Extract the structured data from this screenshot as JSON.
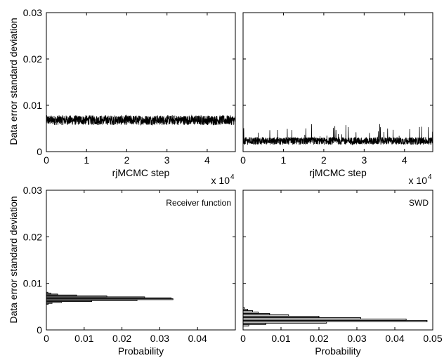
{
  "shared": {
    "ylabel": "Data error standard deviation",
    "trace_xlabel": "rjMCMC step",
    "trace_exponent_text": "x 10",
    "trace_exponent_power": "4",
    "hist_xlabel": "Probability"
  },
  "chart_data": [
    {
      "id": "trace-rf",
      "type": "line",
      "xlabel": "rjMCMC step",
      "ylabel": "Data error standard deviation",
      "xlim": [
        0,
        47000
      ],
      "ylim": [
        0,
        0.03
      ],
      "xticks": [
        0,
        10000,
        20000,
        30000,
        40000
      ],
      "xtick_labels": [
        "0",
        "1",
        "2",
        "3",
        "4"
      ],
      "yticks": [
        0,
        0.01,
        0.02,
        0.03
      ],
      "ytick_labels": [
        "0",
        "0.01",
        "0.02",
        "0.03"
      ],
      "x_multiplier": "x 10^4",
      "series": [
        {
          "values_summary": {
            "mean": 0.0068,
            "min": 0.0058,
            "max": 0.0079
          }
        }
      ],
      "color": "#000000"
    },
    {
      "id": "trace-swd",
      "type": "line",
      "xlabel": "rjMCMC step",
      "ylabel": "",
      "xlim": [
        0,
        47000
      ],
      "ylim": [
        0,
        0.03
      ],
      "xticks": [
        0,
        10000,
        20000,
        30000,
        40000
      ],
      "xtick_labels": [
        "0",
        "1",
        "2",
        "3",
        "4"
      ],
      "yticks": [
        0,
        0.01,
        0.02,
        0.03
      ],
      "ytick_labels": [
        "",
        "",
        "",
        ""
      ],
      "x_multiplier": "x 10^4",
      "series": [
        {
          "values_summary": {
            "mean": 0.0023,
            "min": 0.001,
            "max": 0.006
          }
        }
      ],
      "color": "#000000"
    },
    {
      "id": "hist-rf",
      "type": "bar",
      "title": "Receiver function",
      "xlabel": "Probability",
      "ylabel": "Data error standard deviation",
      "xlim": [
        0,
        0.05
      ],
      "ylim": [
        0,
        0.03
      ],
      "xticks": [
        0,
        0.01,
        0.02,
        0.03,
        0.04
      ],
      "xtick_labels": [
        "0",
        "0.01",
        "0.02",
        "0.03",
        "0.04"
      ],
      "yticks": [
        0,
        0.01,
        0.02,
        0.03
      ],
      "ytick_labels": [
        "0",
        "0.01",
        "0.02",
        "0.03"
      ],
      "bins": [
        {
          "y": 0.0056,
          "p": 0.0005
        },
        {
          "y": 0.0058,
          "p": 0.0015
        },
        {
          "y": 0.006,
          "p": 0.004
        },
        {
          "y": 0.0062,
          "p": 0.012
        },
        {
          "y": 0.0064,
          "p": 0.024
        },
        {
          "y": 0.0066,
          "p": 0.0335
        },
        {
          "y": 0.0068,
          "p": 0.033
        },
        {
          "y": 0.007,
          "p": 0.026
        },
        {
          "y": 0.0072,
          "p": 0.016
        },
        {
          "y": 0.0074,
          "p": 0.008
        },
        {
          "y": 0.0076,
          "p": 0.003
        },
        {
          "y": 0.0078,
          "p": 0.0012
        },
        {
          "y": 0.008,
          "p": 0.0004
        }
      ],
      "fill": "#cccccc"
    },
    {
      "id": "hist-swd",
      "type": "bar",
      "title": "SWD",
      "xlabel": "Probability",
      "ylabel": "",
      "xlim": [
        0,
        0.05
      ],
      "ylim": [
        0,
        0.03
      ],
      "xticks": [
        0,
        0.01,
        0.02,
        0.03,
        0.04,
        0.05
      ],
      "xtick_labels": [
        "0",
        "0.01",
        "0.02",
        "0.03",
        "0.04",
        "0.05"
      ],
      "yticks": [
        0,
        0.01,
        0.02,
        0.03
      ],
      "ytick_labels": [
        "",
        "",
        "",
        ""
      ],
      "bins": [
        {
          "y": 0.001,
          "p": 0.0015
        },
        {
          "y": 0.0013,
          "p": 0.006
        },
        {
          "y": 0.0016,
          "p": 0.022
        },
        {
          "y": 0.0019,
          "p": 0.0485
        },
        {
          "y": 0.0022,
          "p": 0.043
        },
        {
          "y": 0.0025,
          "p": 0.031
        },
        {
          "y": 0.0028,
          "p": 0.02
        },
        {
          "y": 0.0031,
          "p": 0.012
        },
        {
          "y": 0.0034,
          "p": 0.007
        },
        {
          "y": 0.0037,
          "p": 0.004
        },
        {
          "y": 0.004,
          "p": 0.0025
        },
        {
          "y": 0.0043,
          "p": 0.0012
        },
        {
          "y": 0.0046,
          "p": 0.0004
        }
      ],
      "fill": "#cccccc"
    }
  ]
}
